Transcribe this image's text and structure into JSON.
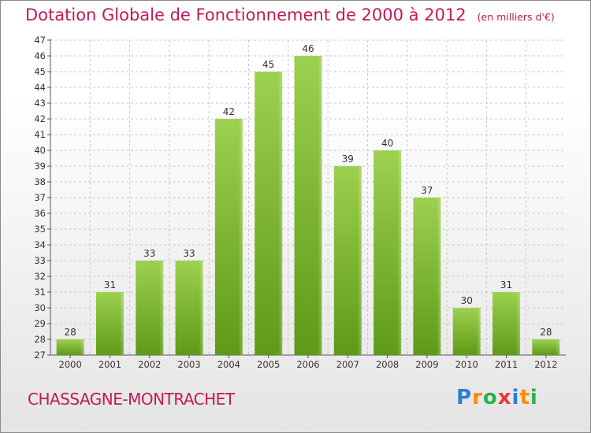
{
  "title": "Dotation Globale de Fonctionnement de 2000 à 2012",
  "subtitle": "(en milliers d'€)",
  "commune": "CHASSAGNE-MONTRACHET",
  "logo": {
    "text": "Proxiti",
    "letter_colors": [
      "#2a7fd4",
      "#ff8a00",
      "#2bb24c",
      "#e53935",
      "#2a7fd4",
      "#ff8a00",
      "#2bb24c"
    ]
  },
  "colors": {
    "bar": "#7cbd2a",
    "bar_highlight": "#9fd455",
    "title": "#c2185b",
    "grid": "#c8c8c8"
  },
  "chart_data": {
    "type": "bar",
    "categories": [
      "2000",
      "2001",
      "2002",
      "2003",
      "2004",
      "2005",
      "2006",
      "2007",
      "2008",
      "2009",
      "2010",
      "2011",
      "2012"
    ],
    "values": [
      28,
      31,
      33,
      33,
      42,
      45,
      46,
      39,
      40,
      37,
      30,
      31,
      28
    ],
    "ylim": [
      27,
      47
    ],
    "ytick_step": 1,
    "grid": true,
    "legend": "none"
  }
}
